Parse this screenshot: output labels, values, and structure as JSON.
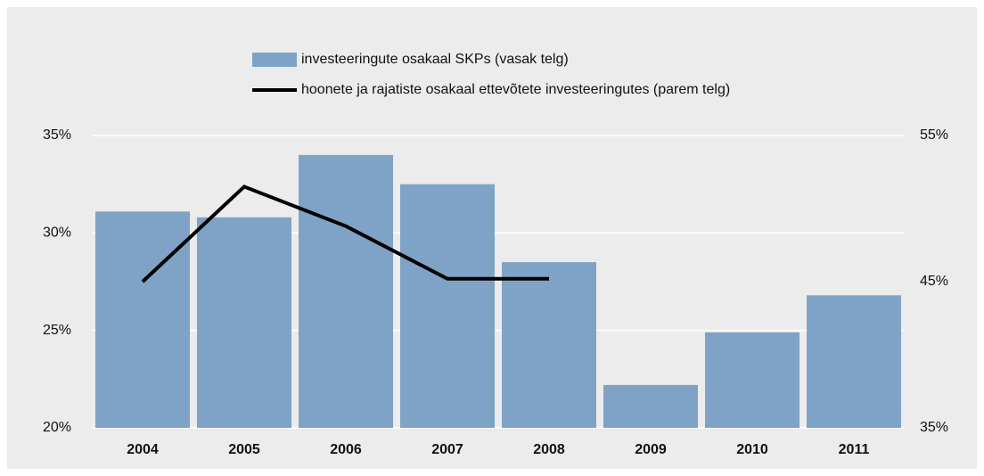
{
  "chart_data": {
    "type": "bar_line",
    "categories": [
      "2004",
      "2005",
      "2006",
      "2007",
      "2008",
      "2009",
      "2010",
      "2011"
    ],
    "series": [
      {
        "name": "investeeringute osakaal SKPs (vasak telg)",
        "color": "#7fa3c6",
        "type": "bar",
        "values": [
          31.1,
          30.8,
          34.0,
          32.5,
          28.5,
          22.2,
          24.9,
          26.8
        ]
      },
      {
        "name": "hoonete ja rajatiste osakaal ettevõtete investeeringutes (parem telg)",
        "color": "#000000",
        "type": "line",
        "axis": "y2",
        "values": [
          45.0,
          51.5,
          48.8,
          45.2,
          45.2,
          null,
          null,
          null
        ]
      }
    ],
    "ylim": [
      20,
      35
    ],
    "yticks": [
      {
        "value": 20,
        "label": "20%"
      },
      {
        "value": 25,
        "label": "25%"
      },
      {
        "value": 30,
        "label": "30%"
      },
      {
        "value": 35,
        "label": "35%"
      }
    ],
    "y2lim": [
      35,
      55
    ],
    "y2ticks": [
      {
        "value": 35,
        "label": "35%"
      },
      {
        "value": 45,
        "label": "45%"
      },
      {
        "value": 55,
        "label": "55%"
      }
    ],
    "grid": true,
    "legend": "top"
  }
}
